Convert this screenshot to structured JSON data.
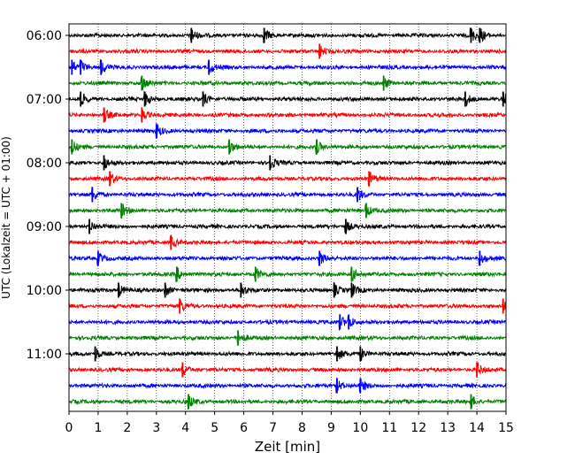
{
  "chart_data": {
    "type": "line",
    "title": "",
    "xlabel": "Zeit  [min]",
    "ylabel": "UTC (Lokalzeit = UTC + 01:00)",
    "xlim": [
      0,
      15
    ],
    "x_ticks": [
      0,
      1,
      2,
      3,
      4,
      5,
      6,
      7,
      8,
      9,
      10,
      11,
      12,
      13,
      14,
      15
    ],
    "x_grid": "vertical dotted",
    "y_tick_labels": [
      "06:00",
      "07:00",
      "08:00",
      "09:00",
      "10:00",
      "11:00"
    ],
    "trace_interval_min": 15,
    "color_cycle": [
      "#000000",
      "#ff0000",
      "#0000ff",
      "#008000"
    ],
    "traces": [
      {
        "start": "06:00",
        "events_min": [
          4.2,
          6.7,
          13.8,
          14.1
        ]
      },
      {
        "start": "06:15",
        "events_min": [
          8.6
        ]
      },
      {
        "start": "06:30",
        "events_min": [
          0.1,
          0.4,
          1.1,
          4.8
        ]
      },
      {
        "start": "06:45",
        "events_min": [
          2.5,
          10.8
        ]
      },
      {
        "start": "07:00",
        "events_min": [
          0.4,
          2.6,
          4.6,
          13.6,
          14.9
        ]
      },
      {
        "start": "07:15",
        "events_min": [
          1.2,
          2.5
        ]
      },
      {
        "start": "07:30",
        "events_min": [
          3.0
        ]
      },
      {
        "start": "07:45",
        "events_min": [
          0.1,
          5.5,
          8.5
        ]
      },
      {
        "start": "08:00",
        "events_min": [
          1.2,
          6.9
        ]
      },
      {
        "start": "08:15",
        "events_min": [
          1.4,
          10.3
        ]
      },
      {
        "start": "08:30",
        "events_min": [
          0.8,
          9.9
        ]
      },
      {
        "start": "08:45",
        "events_min": [
          1.8,
          10.2
        ]
      },
      {
        "start": "09:00",
        "events_min": [
          0.7,
          9.5
        ]
      },
      {
        "start": "09:15",
        "events_min": [
          3.5
        ]
      },
      {
        "start": "09:30",
        "events_min": [
          1.0,
          8.6,
          14.1
        ]
      },
      {
        "start": "09:45",
        "events_min": [
          3.7,
          6.4,
          9.7
        ]
      },
      {
        "start": "10:00",
        "events_min": [
          1.7,
          3.3,
          5.9,
          9.1,
          9.7
        ]
      },
      {
        "start": "10:15",
        "events_min": [
          3.8,
          14.9
        ]
      },
      {
        "start": "10:30",
        "events_min": [
          9.3,
          9.6
        ]
      },
      {
        "start": "10:45",
        "events_min": [
          5.8
        ]
      },
      {
        "start": "11:00",
        "events_min": [
          0.9,
          9.2,
          10.0
        ]
      },
      {
        "start": "11:15",
        "events_min": [
          3.9,
          14.0
        ]
      },
      {
        "start": "11:30",
        "events_min": [
          9.2,
          10.0
        ]
      },
      {
        "start": "11:45",
        "events_min": [
          4.1,
          13.8
        ]
      }
    ]
  }
}
